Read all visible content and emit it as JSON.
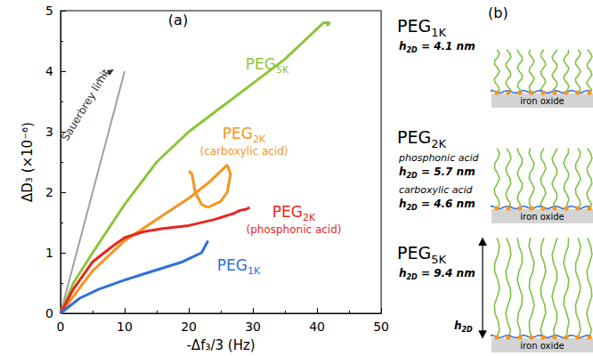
{
  "chart_data": {
    "type": "line",
    "x_label": "-Δf₃/3 (Hz)",
    "y_label": "ΔD₃ (×10⁻⁶)",
    "annotations": [
      "(a)"
    ],
    "xlim": [
      0,
      50
    ],
    "xticks": [
      0,
      10,
      20,
      30,
      40,
      50
    ],
    "ylim": [
      0,
      5
    ],
    "yticks": [
      0,
      1,
      2,
      3,
      4,
      5
    ],
    "grid": false,
    "series": [
      {
        "name": "Sauerbrey limit",
        "color": "#a0a0a0",
        "x": [
          0,
          10
        ],
        "values": [
          0,
          4
        ]
      },
      {
        "name": "PEG5K",
        "color": "#8cc43c",
        "x": [
          0,
          2,
          5,
          10,
          15,
          20,
          25,
          30,
          35,
          38,
          40,
          41,
          42,
          41.5
        ],
        "values": [
          0,
          0.5,
          1.0,
          1.8,
          2.5,
          3.0,
          3.4,
          3.8,
          4.2,
          4.5,
          4.7,
          4.8,
          4.8,
          4.75
        ]
      },
      {
        "name": "PEG2K",
        "sublabel": "(carboxylic acid)",
        "color": "#f7941d",
        "x": [
          0,
          5,
          10,
          15,
          20,
          23,
          25,
          26,
          26.5,
          26,
          25,
          23,
          22,
          21,
          20.5,
          20
        ],
        "values": [
          0,
          0.7,
          1.2,
          1.55,
          1.9,
          2.15,
          2.35,
          2.45,
          2.3,
          2.0,
          1.85,
          1.75,
          1.8,
          2.0,
          2.3,
          2.35
        ]
      },
      {
        "name": "PEG2K",
        "sublabel": "(phosphonic acid)",
        "color": "#e8261f",
        "x": [
          0,
          2,
          5,
          8,
          10,
          13,
          16,
          20,
          24,
          27,
          28,
          29,
          29.5
        ],
        "values": [
          0,
          0.4,
          0.85,
          1.1,
          1.25,
          1.35,
          1.4,
          1.45,
          1.55,
          1.65,
          1.7,
          1.72,
          1.75
        ]
      },
      {
        "name": "PEG1K",
        "color": "#2f6fde",
        "x": [
          0,
          3,
          6,
          10,
          13,
          16,
          19,
          21,
          22,
          22.5,
          23
        ],
        "values": [
          0,
          0.25,
          0.4,
          0.55,
          0.65,
          0.75,
          0.85,
          0.95,
          1.0,
          1.1,
          1.2
        ]
      }
    ]
  },
  "diagram": {
    "label": "(b)",
    "substrate": "iron oxide",
    "arrow_label": "h2D",
    "panels": [
      {
        "name": "PEG1K",
        "thicknesses": [
          {
            "anchor": null,
            "label": "h2D = 4.1 nm",
            "value": 4.1
          }
        ]
      },
      {
        "name": "PEG2K",
        "thicknesses": [
          {
            "anchor": "phosphonic acid",
            "label": "h2D = 5.7 nm",
            "value": 5.7
          },
          {
            "anchor": "carboxylic acid",
            "label": "h2D = 4.6 nm",
            "value": 4.6
          }
        ]
      },
      {
        "name": "PEG5K",
        "thicknesses": [
          {
            "anchor": null,
            "label": "h2D = 9.4 nm",
            "value": 9.4
          }
        ]
      }
    ]
  }
}
